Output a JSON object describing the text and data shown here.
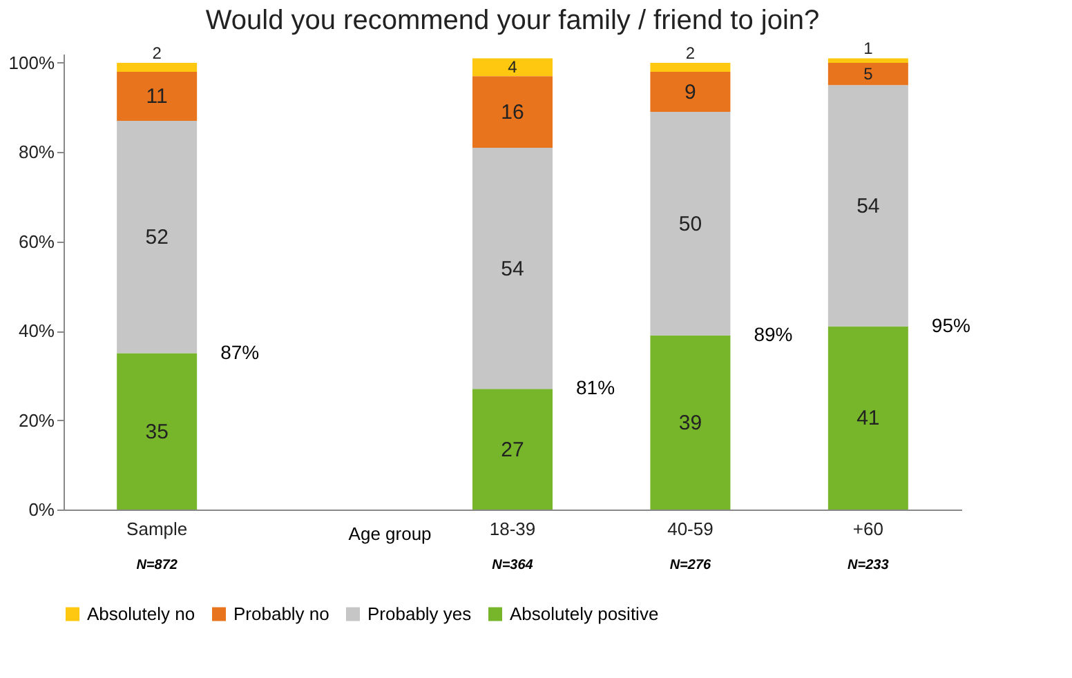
{
  "chart_data": {
    "type": "bar",
    "stacked": true,
    "title": "Would you recommend your family / friend to join?",
    "categories": [
      "Sample",
      null,
      "18-39",
      "40-59",
      "+60"
    ],
    "series": [
      {
        "name": "Absolutely positive",
        "color": "#77b52a",
        "values": [
          35,
          null,
          27,
          39,
          41
        ]
      },
      {
        "name": "Probably yes",
        "color": "#c6c6c6",
        "values": [
          52,
          null,
          54,
          50,
          54
        ]
      },
      {
        "name": "Probably no",
        "color": "#e8741e",
        "values": [
          11,
          null,
          16,
          9,
          5
        ]
      },
      {
        "name": "Absolutely no",
        "color": "#fdc80f",
        "values": [
          2,
          null,
          4,
          2,
          1
        ]
      }
    ],
    "ylim": [
      0,
      102
    ],
    "yticks": [
      {
        "value": 0,
        "label": "0%"
      },
      {
        "value": 20,
        "label": "20%"
      },
      {
        "value": 40,
        "label": "40%"
      },
      {
        "value": 60,
        "label": "60%"
      },
      {
        "value": 80,
        "label": "80%"
      },
      {
        "value": 100,
        "label": "100%"
      }
    ],
    "data_labels": true,
    "grid": false,
    "legend": "bottom",
    "annotations": [
      "87%",
      "81%",
      "89%",
      "95%",
      "N=872",
      "N=364",
      "N=276",
      "N=233",
      "Age group"
    ]
  }
}
